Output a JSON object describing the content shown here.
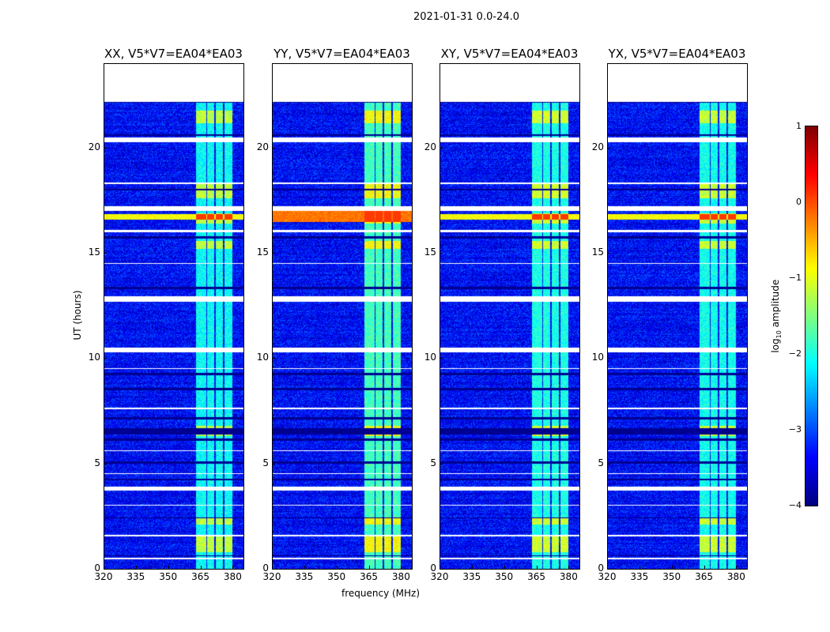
{
  "chart_data": {
    "type": "heatmap",
    "title": "2021-01-31 0.0-24.0",
    "xlabel": "frequency (MHz)",
    "ylabel": "UT (hours)",
    "xlim": [
      320,
      385
    ],
    "ylim": [
      0,
      24
    ],
    "xticks": [
      "320",
      "335",
      "350",
      "365",
      "380"
    ],
    "xtick_values": [
      320,
      335,
      350,
      365,
      380
    ],
    "yticks": [
      "0",
      "5",
      "10",
      "15",
      "20"
    ],
    "ytick_values": [
      0,
      5,
      10,
      15,
      20
    ],
    "data_end_hour": 22.2,
    "panels": [
      {
        "title": "XX, V5*V7=EA04*EA03",
        "rfi_boost": 0.0
      },
      {
        "title": "YY, V5*V7=EA04*EA03",
        "rfi_boost": 0.3
      },
      {
        "title": "XY, V5*V7=EA04*EA03",
        "rfi_boost": 0.1
      },
      {
        "title": "YX, V5*V7=EA04*EA03",
        "rfi_boost": 0.05
      }
    ],
    "rfi_channels_mhz": [
      [
        363,
        367.5
      ],
      [
        368,
        371.5
      ],
      [
        372,
        375.5
      ],
      [
        376,
        380
      ]
    ],
    "flagged_hours": [
      [
        20.3,
        20.5
      ],
      [
        17.0,
        17.25
      ],
      [
        16.0,
        16.1
      ],
      [
        12.7,
        12.95
      ],
      [
        10.3,
        10.5
      ],
      [
        9.5,
        9.55
      ],
      [
        3.7,
        3.9
      ],
      [
        1.55,
        1.62
      ],
      [
        0.45,
        0.52
      ],
      [
        18.3,
        18.35
      ],
      [
        14.5,
        14.55
      ],
      [
        7.6,
        7.65
      ],
      [
        4.5,
        4.55
      ],
      [
        3.0,
        3.05
      ],
      [
        5.6,
        5.65
      ]
    ],
    "dropout_hours": [
      [
        22.15,
        22.22
      ],
      [
        20.6,
        20.65
      ],
      [
        18.0,
        18.05
      ],
      [
        15.7,
        15.8
      ],
      [
        13.3,
        13.4
      ],
      [
        9.2,
        9.3
      ],
      [
        8.5,
        8.6
      ],
      [
        7.1,
        7.2
      ],
      [
        6.4,
        6.7
      ],
      [
        6.1,
        6.2
      ],
      [
        5.0,
        5.1
      ],
      [
        4.2,
        4.3
      ],
      [
        2.4,
        2.45
      ],
      [
        0.6,
        0.65
      ]
    ],
    "bright_hours": [
      [
        21.2,
        21.8
      ],
      [
        17.6,
        18.3
      ],
      [
        16.4,
        16.9
      ],
      [
        15.2,
        15.6
      ],
      [
        6.3,
        6.8
      ],
      [
        2.1,
        2.4
      ],
      [
        0.8,
        1.6
      ]
    ],
    "colorbar": {
      "label": "log10 amplitude",
      "label_main": "log",
      "label_sub": "10",
      "label_rest": " amplitude",
      "range": [
        -4,
        1
      ],
      "ticks": [
        "1",
        "0",
        "−1",
        "−2",
        "−3",
        "−4"
      ],
      "tick_values": [
        1,
        0,
        -1,
        -2,
        -3,
        -4
      ],
      "colormap": "jet"
    }
  }
}
